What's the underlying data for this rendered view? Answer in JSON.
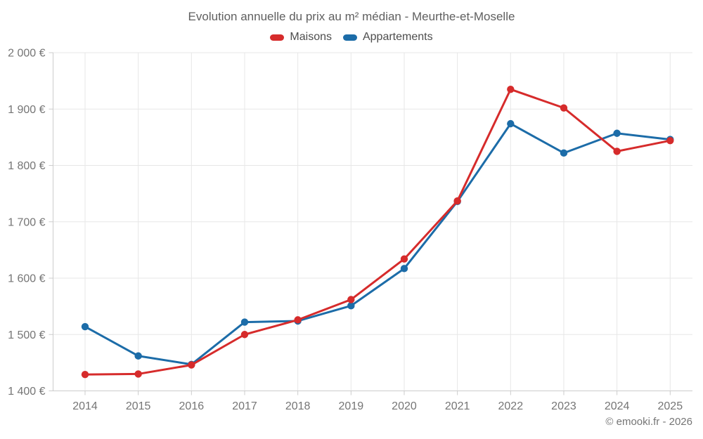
{
  "page": {
    "footer": "© emooki.fr - 2026"
  },
  "chart_data": {
    "type": "line",
    "title": "Evolution annuelle du prix au m² médian - Meurthe-et-Moselle",
    "categories": [
      "2014",
      "2015",
      "2016",
      "2017",
      "2018",
      "2019",
      "2020",
      "2021",
      "2022",
      "2023",
      "2024",
      "2025"
    ],
    "series": [
      {
        "name": "Maisons",
        "color": "#d62b2b",
        "values": [
          1429,
          1430,
          1446,
          1500,
          1526,
          1562,
          1634,
          1737,
          1935,
          1902,
          1825,
          1844
        ]
      },
      {
        "name": "Appartements",
        "color": "#1c6ca8",
        "values": [
          1514,
          1462,
          1447,
          1522,
          1524,
          1551,
          1617,
          1736,
          1874,
          1822,
          1857,
          1846
        ]
      }
    ],
    "xlabel": "",
    "ylabel": "",
    "ylim": [
      1400,
      2000
    ],
    "yticks": [
      {
        "value": 1400,
        "label": "1 400 €"
      },
      {
        "value": 1500,
        "label": "1 500 €"
      },
      {
        "value": 1600,
        "label": "1 600 €"
      },
      {
        "value": 1700,
        "label": "1 700 €"
      },
      {
        "value": 1800,
        "label": "1 800 €"
      },
      {
        "value": 1900,
        "label": "1 900 €"
      },
      {
        "value": 2000,
        "label": "2 000 €"
      }
    ],
    "grid": true,
    "legend_position": "top"
  },
  "colors": {
    "grid": "#e7e7e7",
    "axis": "#cccccc",
    "tick_label": "#757575",
    "title_text": "#5f5f5f",
    "legend_text": "#4d4d4d",
    "background": "#ffffff"
  }
}
